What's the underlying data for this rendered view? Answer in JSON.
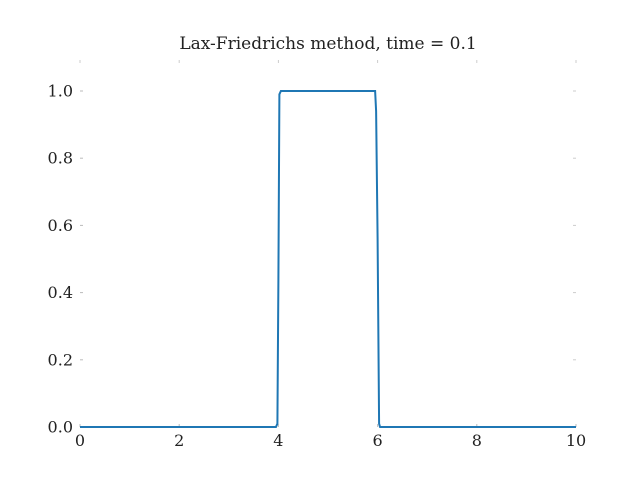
{
  "chart_data": {
    "type": "line",
    "title": "Lax-Friedrichs method, time = 0.1",
    "xlabel": "",
    "ylabel": "",
    "xlim": [
      0,
      10
    ],
    "ylim": [
      0.0,
      1.0
    ],
    "x_ticks": [
      0,
      2,
      4,
      6,
      8,
      10
    ],
    "x_tick_labels": [
      "0",
      "2",
      "4",
      "6",
      "8",
      "10"
    ],
    "y_ticks": [
      0.0,
      0.2,
      0.4,
      0.6,
      0.8,
      1.0
    ],
    "y_tick_labels": [
      "0.0",
      "0.2",
      "0.4",
      "0.6",
      "0.8",
      "1.0"
    ],
    "grid": false,
    "series_color": "#1f77b4",
    "series": [
      {
        "x": [
          0.0,
          3.95,
          3.98,
          4.0,
          4.02,
          4.05,
          5.95,
          5.97,
          6.0,
          6.03,
          6.05,
          10.0
        ],
        "y": [
          0.0,
          0.0,
          0.01,
          0.44,
          0.99,
          1.0,
          1.0,
          0.94,
          0.56,
          0.01,
          0.0,
          0.0
        ]
      }
    ]
  }
}
